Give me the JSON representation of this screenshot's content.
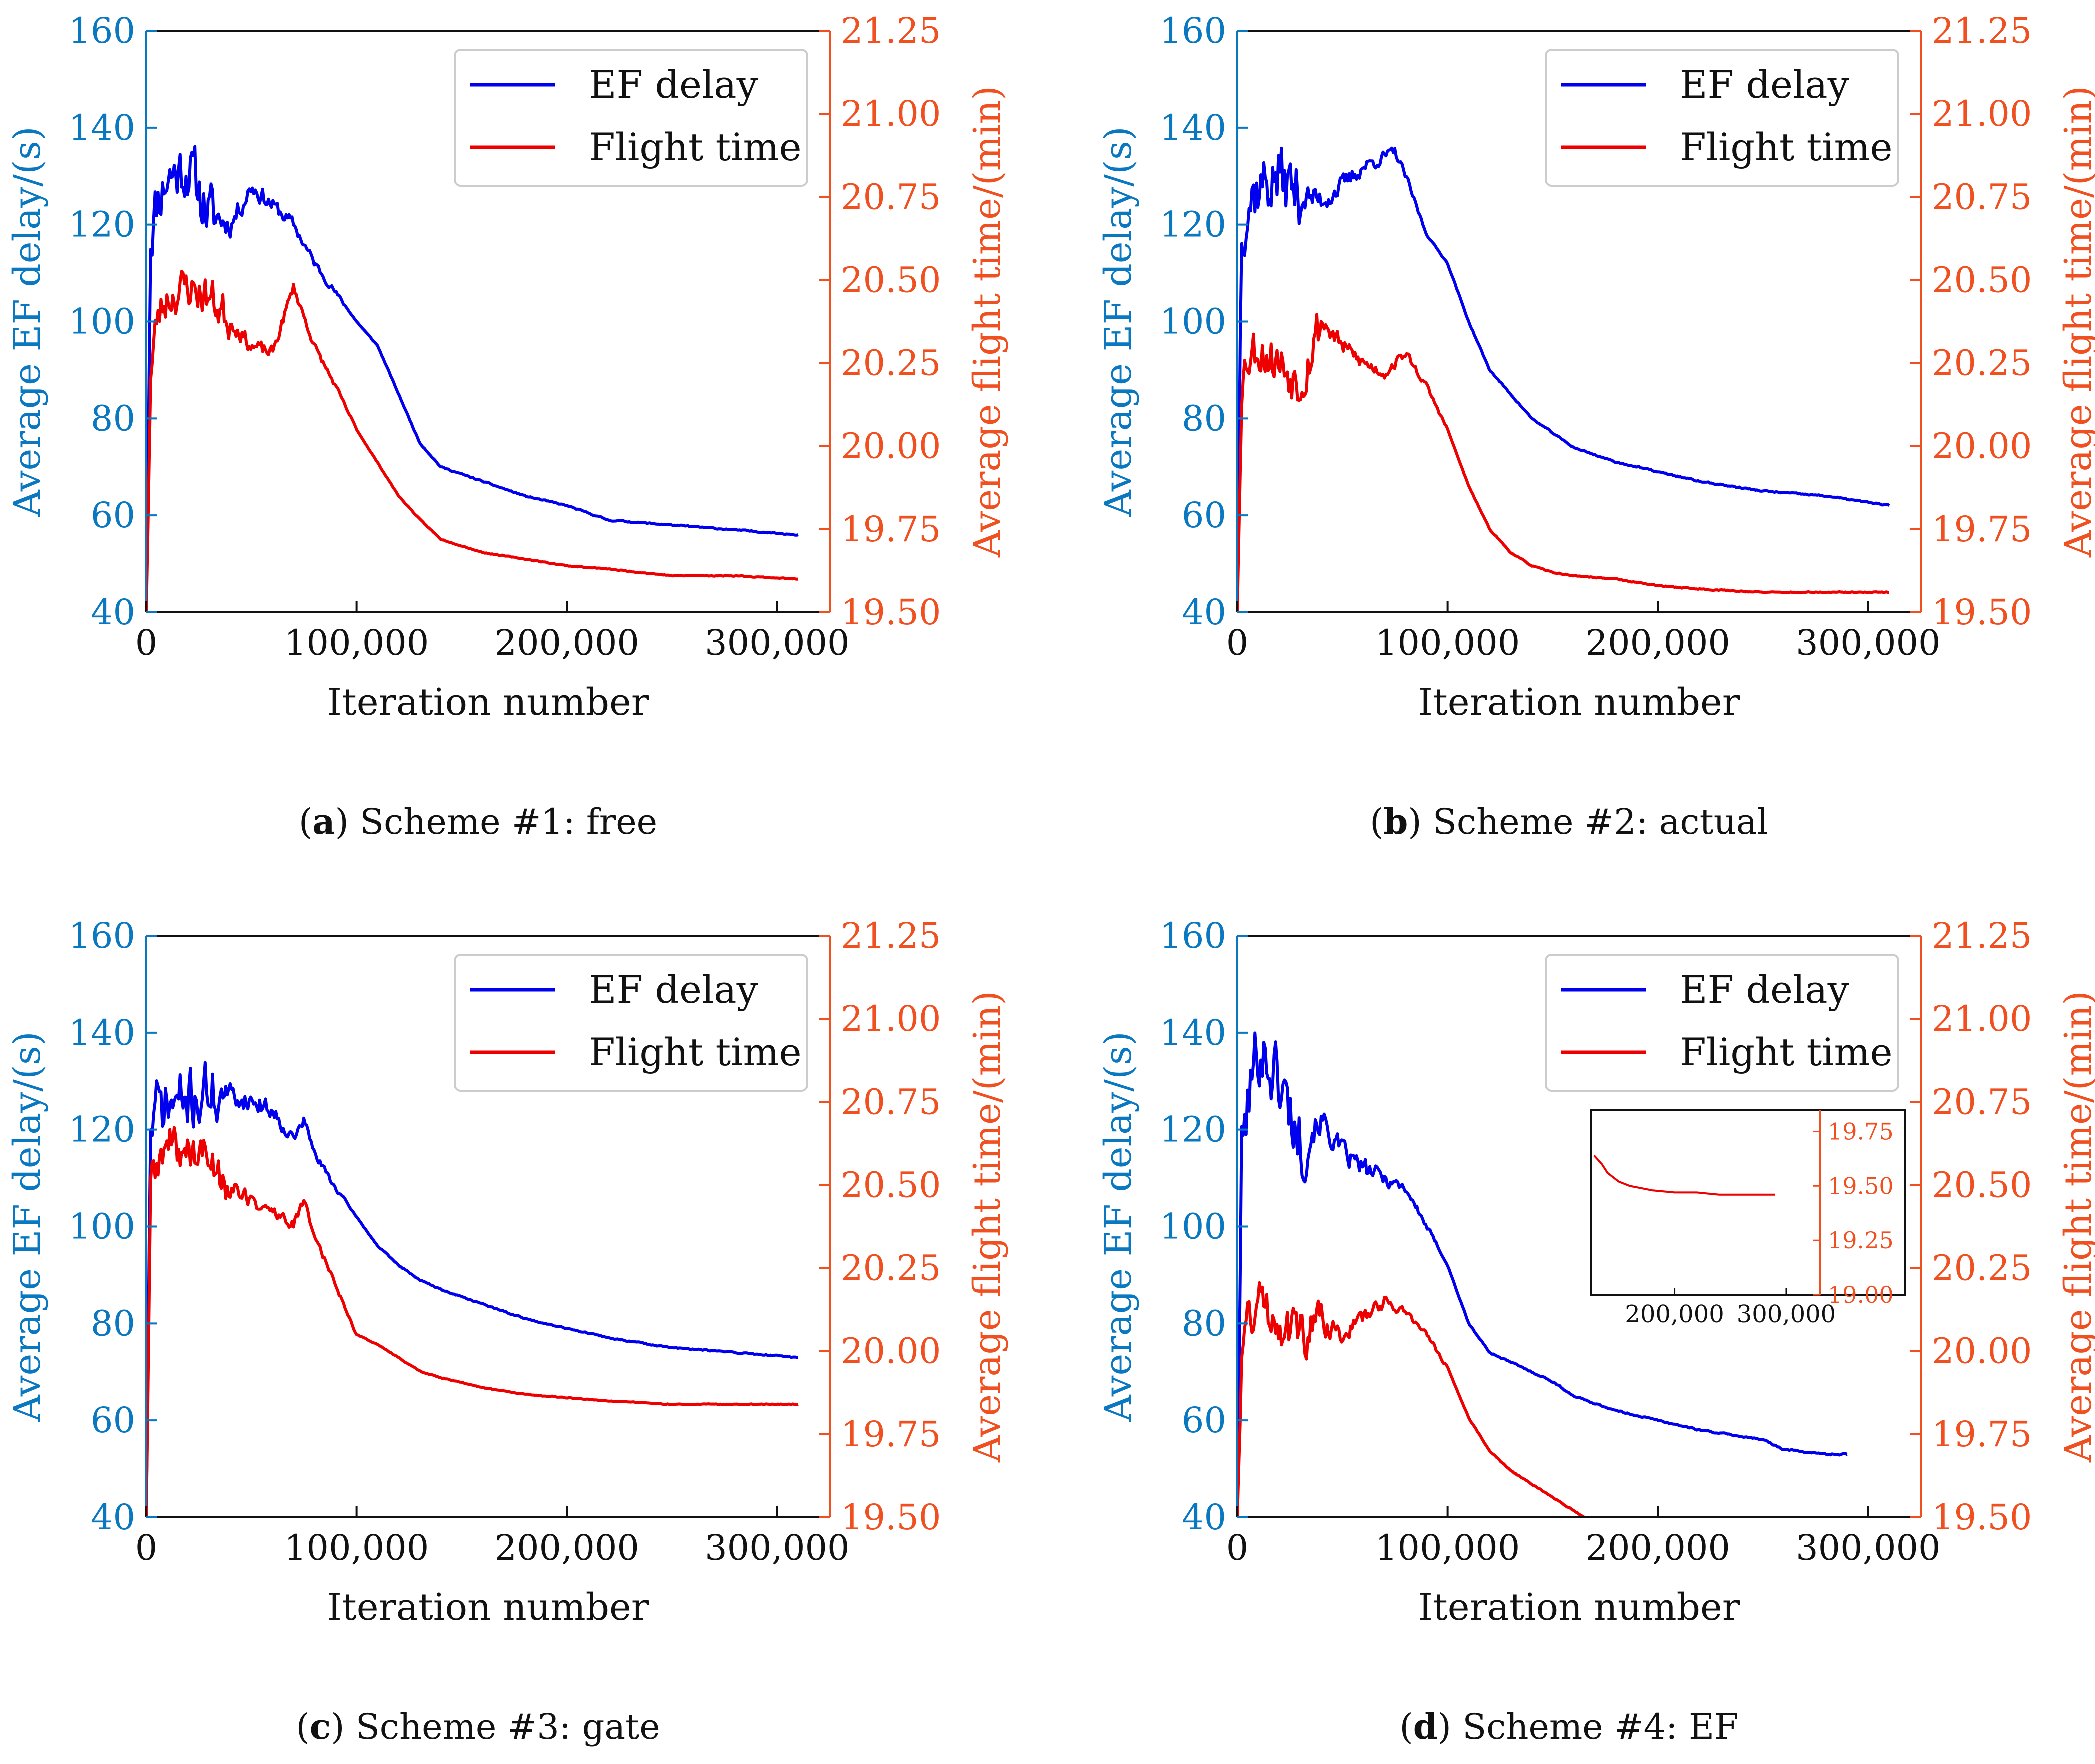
{
  "figure": {
    "panels": [
      {
        "caption_letter": "a",
        "caption_text": "Scheme #1: free"
      },
      {
        "caption_letter": "b",
        "caption_text": "Scheme #2: actual"
      },
      {
        "caption_letter": "c",
        "caption_text": "Scheme #3: gate"
      },
      {
        "caption_letter": "d",
        "caption_text": "Scheme #4: EF"
      }
    ]
  },
  "colors": {
    "left_axis": "#0a78c0",
    "right_axis": "#f05020",
    "ef_delay_line": "#0000ee",
    "flight_time_line": "#ee0000",
    "axis": "#111111"
  },
  "chart_data": [
    {
      "type": "line",
      "title": "(a) Scheme #1: free",
      "xlabel": "Iteration number",
      "ylabel": "Average EF delay/(s)",
      "y2label": "Average flight time/(min)",
      "xlim": [
        0,
        325000
      ],
      "ylim": [
        40,
        160
      ],
      "y2lim": [
        19.5,
        21.25
      ],
      "xticks": [
        "0",
        "100,000",
        "200,000",
        "300,000"
      ],
      "yticks": [
        "40",
        "60",
        "80",
        "100",
        "120",
        "140",
        "160"
      ],
      "y2ticks": [
        "19.50",
        "19.75",
        "20.00",
        "20.25",
        "20.50",
        "20.75",
        "21.00",
        "21.25"
      ],
      "legend": [
        "EF delay",
        "Flight time"
      ],
      "legend_position": "top-right",
      "series": [
        {
          "name": "EF delay",
          "axis": "left",
          "noise": 10,
          "noise_end": 35000,
          "seed": 11,
          "x": [
            0,
            2000,
            5000,
            10000,
            20000,
            30000,
            40000,
            50000,
            60000,
            70000,
            80000,
            90000,
            100000,
            110000,
            120000,
            130000,
            140000,
            160000,
            180000,
            200000,
            220000,
            250000,
            280000,
            310000
          ],
          "y": [
            40,
            118,
            125,
            130,
            132,
            122,
            120,
            128,
            124,
            120,
            112,
            106,
            100,
            95,
            85,
            75,
            70,
            67,
            64,
            62,
            59,
            58,
            57,
            56
          ]
        },
        {
          "name": "Flight time",
          "axis": "right",
          "noise": 0.1,
          "noise_end": 40000,
          "seed": 23,
          "x": [
            0,
            2000,
            5000,
            10000,
            20000,
            30000,
            40000,
            50000,
            60000,
            70000,
            80000,
            90000,
            100000,
            110000,
            120000,
            130000,
            140000,
            150000,
            160000,
            180000,
            200000,
            220000,
            250000,
            280000,
            310000
          ],
          "y": [
            19.5,
            20.2,
            20.38,
            20.45,
            20.48,
            20.45,
            20.38,
            20.3,
            20.28,
            20.48,
            20.3,
            20.18,
            20.05,
            19.95,
            19.85,
            19.78,
            19.72,
            19.7,
            19.68,
            19.66,
            19.64,
            19.63,
            19.61,
            19.61,
            19.6
          ]
        }
      ]
    },
    {
      "type": "line",
      "title": "(b) Scheme #2: actual",
      "xlabel": "Iteration number",
      "ylabel": "Average EF delay/(s)",
      "y2label": "Average flight time/(min)",
      "xlim": [
        0,
        325000
      ],
      "ylim": [
        40,
        160
      ],
      "y2lim": [
        19.5,
        21.25
      ],
      "xticks": [
        "0",
        "100,000",
        "200,000",
        "300,000"
      ],
      "yticks": [
        "40",
        "60",
        "80",
        "100",
        "120",
        "140",
        "160"
      ],
      "y2ticks": [
        "19.50",
        "19.75",
        "20.00",
        "20.25",
        "20.50",
        "20.75",
        "21.00",
        "21.25"
      ],
      "legend": [
        "EF delay",
        "Flight time"
      ],
      "legend_position": "top-right",
      "series": [
        {
          "name": "EF delay",
          "axis": "left",
          "noise": 11,
          "noise_end": 30000,
          "seed": 37,
          "x": [
            0,
            2000,
            5000,
            10000,
            20000,
            30000,
            40000,
            50000,
            60000,
            70000,
            75000,
            80000,
            90000,
            100000,
            110000,
            120000,
            130000,
            140000,
            160000,
            180000,
            200000,
            220000,
            250000,
            280000,
            310000
          ],
          "y": [
            40,
            120,
            125,
            128,
            130,
            126,
            125,
            128,
            132,
            134,
            135,
            130,
            118,
            112,
            100,
            90,
            85,
            80,
            74,
            71,
            69,
            67,
            65,
            64,
            62
          ]
        },
        {
          "name": "Flight time",
          "axis": "right",
          "noise": 0.12,
          "noise_end": 40000,
          "seed": 53,
          "x": [
            0,
            2000,
            5000,
            10000,
            20000,
            30000,
            40000,
            50000,
            60000,
            70000,
            80000,
            90000,
            100000,
            110000,
            120000,
            130000,
            140000,
            150000,
            160000,
            180000,
            200000,
            220000,
            250000,
            280000,
            310000
          ],
          "y": [
            19.5,
            20.2,
            20.28,
            20.3,
            20.25,
            20.2,
            20.38,
            20.3,
            20.25,
            20.22,
            20.28,
            20.18,
            20.05,
            19.88,
            19.75,
            19.68,
            19.64,
            19.62,
            19.61,
            19.6,
            19.58,
            19.57,
            19.56,
            19.56,
            19.56
          ]
        }
      ]
    },
    {
      "type": "line",
      "title": "(c) Scheme #3: gate",
      "xlabel": "Iteration number",
      "ylabel": "Average EF delay/(s)",
      "y2label": "Average flight time/(min)",
      "xlim": [
        0,
        325000
      ],
      "ylim": [
        40,
        160
      ],
      "y2lim": [
        19.5,
        21.25
      ],
      "xticks": [
        "0",
        "100,000",
        "200,000",
        "300,000"
      ],
      "yticks": [
        "40",
        "60",
        "80",
        "100",
        "120",
        "140",
        "160"
      ],
      "y2ticks": [
        "19.50",
        "19.75",
        "20.00",
        "20.25",
        "20.50",
        "20.75",
        "21.00",
        "21.25"
      ],
      "legend": [
        "EF delay",
        "Flight time"
      ],
      "legend_position": "top-right",
      "series": [
        {
          "name": "EF delay",
          "axis": "left",
          "noise": 10,
          "noise_end": 35000,
          "seed": 71,
          "x": [
            0,
            2000,
            5000,
            10000,
            20000,
            30000,
            40000,
            50000,
            60000,
            70000,
            75000,
            80000,
            90000,
            100000,
            110000,
            120000,
            130000,
            140000,
            160000,
            180000,
            200000,
            220000,
            250000,
            280000,
            310000
          ],
          "y": [
            40,
            120,
            124,
            125,
            126,
            128,
            127,
            126,
            124,
            118,
            122,
            115,
            108,
            102,
            96,
            92,
            89,
            87,
            84,
            81,
            79,
            77,
            75,
            74,
            73
          ]
        },
        {
          "name": "Flight time",
          "axis": "right",
          "noise": 0.1,
          "noise_end": 40000,
          "seed": 89,
          "x": [
            0,
            2000,
            5000,
            10000,
            20000,
            30000,
            40000,
            50000,
            60000,
            70000,
            75000,
            80000,
            90000,
            100000,
            110000,
            120000,
            130000,
            140000,
            160000,
            180000,
            200000,
            220000,
            250000,
            280000,
            310000
          ],
          "y": [
            19.5,
            20.5,
            20.55,
            20.62,
            20.6,
            20.58,
            20.5,
            20.45,
            20.42,
            20.38,
            20.45,
            20.35,
            20.2,
            20.05,
            20.02,
            19.98,
            19.94,
            19.92,
            19.89,
            19.87,
            19.86,
            19.85,
            19.84,
            19.84,
            19.84
          ]
        }
      ]
    },
    {
      "type": "line",
      "title": "(d) Scheme #4: EF",
      "xlabel": "Iteration number",
      "ylabel": "Average EF delay/(s)",
      "y2label": "Average flight time/(min)",
      "xlim": [
        0,
        325000
      ],
      "ylim": [
        40,
        160
      ],
      "y2lim": [
        19.5,
        21.25
      ],
      "xticks": [
        "0",
        "100,000",
        "200,000",
        "300,000"
      ],
      "yticks": [
        "40",
        "60",
        "80",
        "100",
        "120",
        "140",
        "160"
      ],
      "y2ticks": [
        "19.50",
        "19.75",
        "20.00",
        "20.25",
        "20.50",
        "20.75",
        "21.00",
        "21.25"
      ],
      "legend": [
        "EF delay",
        "Flight time"
      ],
      "legend_position": "top-right",
      "series": [
        {
          "name": "EF delay",
          "axis": "left",
          "noise": 12,
          "noise_end": 35000,
          "seed": 101,
          "x": [
            0,
            2000,
            5000,
            10000,
            20000,
            30000,
            40000,
            50000,
            60000,
            70000,
            80000,
            90000,
            100000,
            110000,
            120000,
            130000,
            140000,
            150000,
            160000,
            180000,
            200000,
            220000,
            250000,
            260000,
            280000,
            290000
          ],
          "y": [
            40,
            115,
            125,
            138,
            130,
            118,
            122,
            115,
            112,
            110,
            108,
            100,
            92,
            80,
            74,
            72,
            70,
            68,
            65,
            62,
            60,
            58,
            56,
            54,
            53,
            53
          ]
        },
        {
          "name": "Flight time",
          "axis": "right",
          "noise": 0.12,
          "noise_end": 40000,
          "seed": 131,
          "x": [
            0,
            2000,
            5000,
            10000,
            20000,
            30000,
            40000,
            50000,
            60000,
            70000,
            80000,
            90000,
            100000,
            110000,
            120000,
            130000,
            140000,
            150000,
            160000,
            165000
          ],
          "y": [
            19.5,
            20.0,
            20.1,
            20.15,
            20.1,
            20.05,
            20.08,
            20.05,
            20.1,
            20.15,
            20.12,
            20.05,
            19.95,
            19.8,
            19.7,
            19.64,
            19.6,
            19.56,
            19.52,
            19.5
          ]
        }
      ],
      "inset": {
        "xlim": [
          125000,
          330000
        ],
        "y2lim": [
          19.0,
          19.85
        ],
        "xticks": [
          "200,000",
          "300,000"
        ],
        "y2ticks": [
          "19.00",
          "19.25",
          "19.50",
          "19.75"
        ],
        "series": [
          {
            "name": "Flight time",
            "x": [
              128000,
              135000,
              140000,
              150000,
              160000,
              170000,
              180000,
              200000,
              220000,
              240000,
              260000,
              290000
            ],
            "y": [
              19.64,
              19.6,
              19.56,
              19.52,
              19.5,
              19.49,
              19.48,
              19.47,
              19.47,
              19.46,
              19.46,
              19.46
            ]
          }
        ]
      }
    }
  ]
}
